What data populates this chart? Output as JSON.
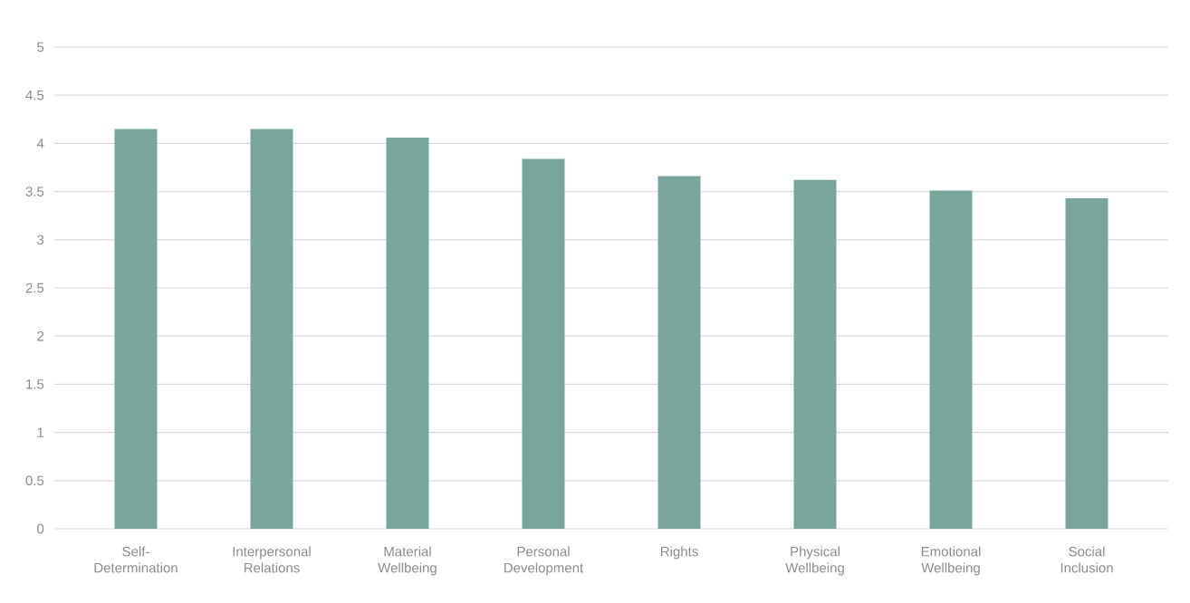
{
  "chart_data": {
    "type": "bar",
    "categories": [
      "Self-Determination",
      "Interpersonal Relations",
      "Material Wellbeing",
      "Personal Development",
      "Rights",
      "Physical Wellbeing",
      "Emotional Wellbeing",
      "Social Inclusion"
    ],
    "values": [
      4.15,
      4.15,
      4.06,
      3.84,
      3.66,
      3.62,
      3.51,
      3.43
    ],
    "color": "#78a59c",
    "ylim": [
      0,
      5
    ],
    "yticks": [
      0,
      0.5,
      1,
      1.5,
      2,
      2.5,
      3,
      3.5,
      4,
      4.5,
      5
    ],
    "grid": "y"
  }
}
